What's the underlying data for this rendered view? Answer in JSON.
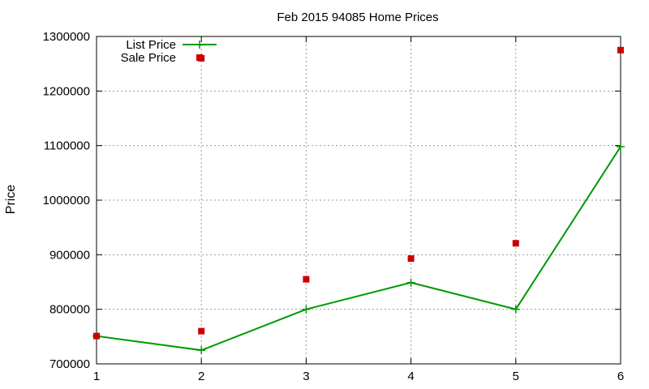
{
  "chart_data": {
    "type": "line",
    "title": "Feb 2015 94085 Home Prices",
    "xlabel": "",
    "ylabel": "Price",
    "x": [
      1,
      2,
      3,
      4,
      5,
      6
    ],
    "xlim": [
      1,
      6
    ],
    "ylim": [
      700000,
      1300000
    ],
    "xticks": [
      1,
      2,
      3,
      4,
      5,
      6
    ],
    "yticks": [
      700000,
      800000,
      900000,
      1000000,
      1100000,
      1200000,
      1300000
    ],
    "grid": true,
    "legend_position": "top-left",
    "series": [
      {
        "name": "List Price",
        "kind": "line-with-points",
        "color": "#009900",
        "marker": "plus",
        "values": [
          751000,
          725000,
          800000,
          849000,
          800000,
          1098000
        ]
      },
      {
        "name": "Sale Price",
        "kind": "points",
        "color": "#cc0000",
        "marker": "square",
        "values": [
          751000,
          760000,
          855000,
          893000,
          921000,
          1275000
        ]
      }
    ],
    "extra_points": [
      {
        "series": "Sale Price",
        "x": 2,
        "y": 1260000
      }
    ]
  }
}
